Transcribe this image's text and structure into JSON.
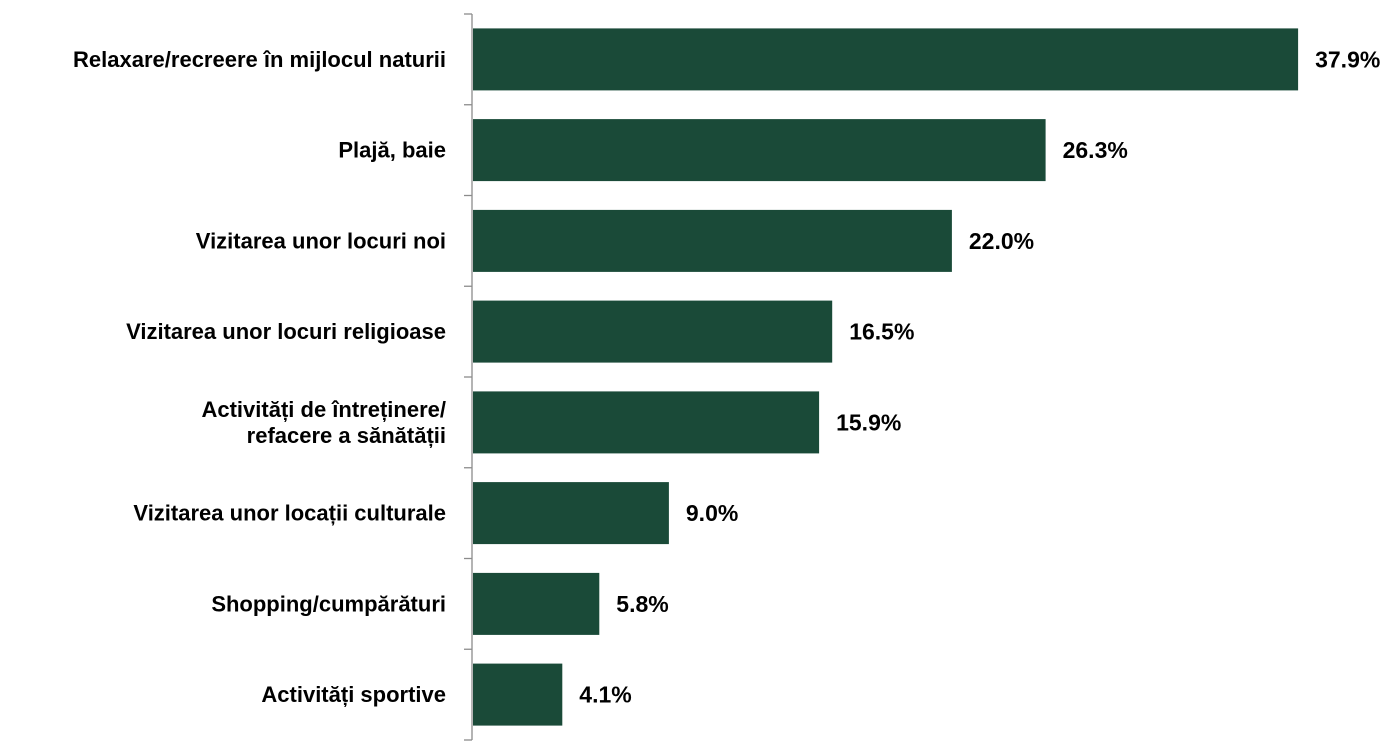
{
  "chart_data": {
    "type": "bar",
    "orientation": "horizontal",
    "categories": [
      [
        "Relaxare/recreere în mijlocul naturii"
      ],
      [
        "Plajă, baie"
      ],
      [
        "Vizitarea unor locuri noi"
      ],
      [
        "Vizitarea unor locuri religioase"
      ],
      [
        "Activități de întreținere/",
        "refacere a sănătății"
      ],
      [
        "Vizitarea unor locații culturale"
      ],
      [
        "Shopping/cumpărături"
      ],
      [
        "Activități sportive"
      ]
    ],
    "values": [
      37.9,
      26.3,
      22.0,
      16.5,
      15.9,
      9.0,
      5.8,
      4.1
    ],
    "value_labels": [
      "37.9%",
      "26.3%",
      "22.0%",
      "16.5%",
      "15.9%",
      "9.0%",
      "5.8%",
      "4.1%"
    ],
    "xlim": [
      0,
      40
    ],
    "grid": false,
    "legend": "none",
    "bar_color": "#1a4a38"
  }
}
